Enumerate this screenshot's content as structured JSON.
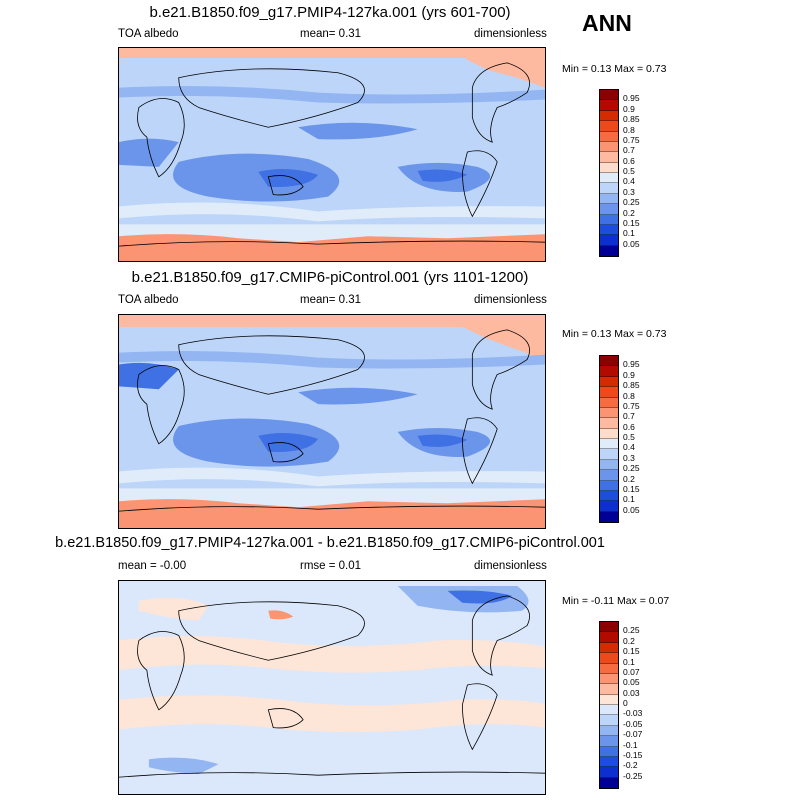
{
  "season": "ANN",
  "panels": [
    {
      "title": "b.e21.B1850.f09_g17.PMIP4-127ka.001 (yrs 601-700)",
      "left": "TOA albedo",
      "mid": "mean=   0.31",
      "right": "dimensionless",
      "minmax": "Min =   0.13 Max =   0.73"
    },
    {
      "title": "b.e21.B1850.f09_g17.CMIP6-piControl.001 (yrs 1101-1200)",
      "left": "TOA albedo",
      "mid": "mean=   0.31",
      "right": "dimensionless",
      "minmax": "Min =   0.13 Max =   0.73"
    },
    {
      "title": "b.e21.B1850.f09_g17.PMIP4-127ka.001 - b.e21.B1850.f09_g17.CMIP6-piControl.001",
      "left": "mean =   -0.00",
      "mid": "rmse =   0.01",
      "right": "dimensionless",
      "minmax": "Min =  -0.11 Max =   0.07"
    }
  ],
  "colorbar_abs": {
    "labels": [
      "0.95",
      "0.9",
      "0.85",
      "0.8",
      "0.75",
      "0.7",
      "0.6",
      "0.5",
      "0.4",
      "0.3",
      "0.25",
      "0.2",
      "0.15",
      "0.1",
      "0.05"
    ],
    "colors": [
      "#8b0000",
      "#b30a00",
      "#d42b00",
      "#ec4a1a",
      "#f66c40",
      "#fb9472",
      "#fdbaa0",
      "#fddccc",
      "#e0ecfa",
      "#bcd5f8",
      "#93b5f2",
      "#6a95ea",
      "#3f70e4",
      "#1c4ddd",
      "#0d2fd0",
      "#000097"
    ]
  },
  "colorbar_diff": {
    "labels": [
      "0.25",
      "0.2",
      "0.15",
      "0.1",
      "0.07",
      "0.05",
      "0.03",
      "0",
      "-0.03",
      "-0.05",
      "-0.07",
      "-0.1",
      "-0.15",
      "-0.2",
      "-0.25"
    ],
    "colors": [
      "#8b0000",
      "#b30a00",
      "#d42b00",
      "#ec4a1a",
      "#f66c40",
      "#fb9472",
      "#fdbaa0",
      "#fde5d8",
      "#dbe8fb",
      "#bcd5f8",
      "#93b5f2",
      "#6a95ea",
      "#3f70e4",
      "#1c4ddd",
      "#0d2fd0",
      "#000097"
    ]
  }
}
